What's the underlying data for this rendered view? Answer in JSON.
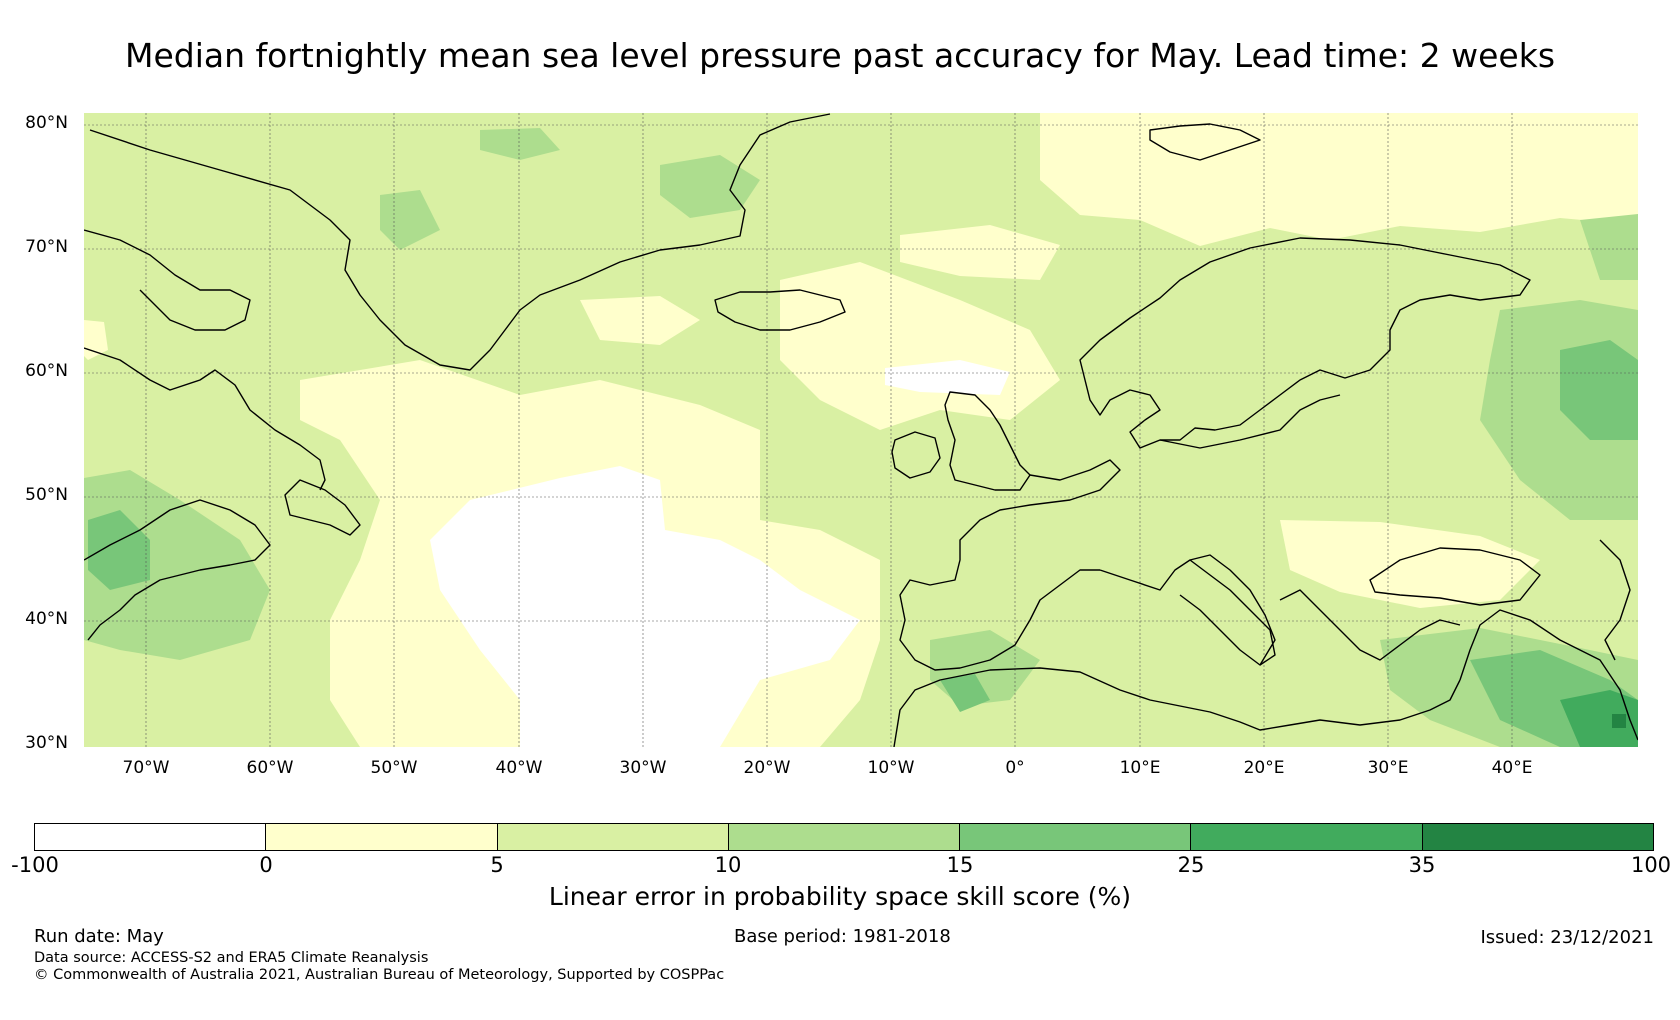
{
  "title": "Median fortnightly mean sea level pressure past accuracy for May. Lead time: 2 weeks",
  "map": {
    "lat_labels": [
      "80°N",
      "70°N",
      "60°N",
      "50°N",
      "40°N",
      "30°N"
    ],
    "lon_labels": [
      "70°W",
      "60°W",
      "50°W",
      "40°W",
      "30°W",
      "20°W",
      "10°W",
      "0°",
      "10°E",
      "20°E",
      "30°E",
      "40°E"
    ]
  },
  "colorbar": {
    "ticks": [
      "-100",
      "0",
      "5",
      "10",
      "15",
      "25",
      "35",
      "100"
    ],
    "colors": [
      "#ffffff",
      "#ffffcc",
      "#d9f0a3",
      "#addd8e",
      "#78c679",
      "#41ab5d",
      "#238443"
    ],
    "label": "Linear error in probability space skill score (%)"
  },
  "footer": {
    "run_date": "Run date: May",
    "base_period": "Base period: 1981-2018",
    "issued": "Issued: 23/12/2021",
    "data_source": "Data source: ACCESS-S2 and ERA5 Climate Reanalysis",
    "copyright": "© Commonwealth of Australia 2021, Australian Bureau of Meteorology, Supported by COSPPac"
  }
}
